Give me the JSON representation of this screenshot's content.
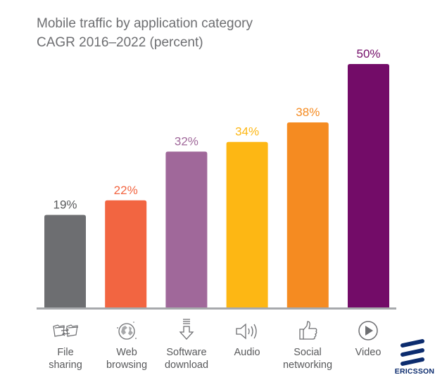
{
  "chart_data": {
    "type": "bar",
    "title": "Mobile traffic by application category",
    "subtitle": "CAGR 2016–2022 (percent)",
    "categories": [
      {
        "line1": "File",
        "line2": "sharing"
      },
      {
        "line1": "Web",
        "line2": "browsing"
      },
      {
        "line1": "Software",
        "line2": "download"
      },
      {
        "line1": "Audio",
        "line2": ""
      },
      {
        "line1": "Social",
        "line2": "networking"
      },
      {
        "line1": "Video",
        "line2": ""
      }
    ],
    "values": [
      19,
      22,
      32,
      34,
      38,
      50
    ],
    "data_labels": [
      "19%",
      "22%",
      "32%",
      "34%",
      "38%",
      "50%"
    ],
    "colors": [
      "#6d6e71",
      "#f26541",
      "#a0689a",
      "#fdb714",
      "#f58b21",
      "#730c68"
    ],
    "label_colors": [
      "#58595b",
      "#f26541",
      "#a0689a",
      "#fdb714",
      "#f58b21",
      "#730c68"
    ],
    "icons": [
      "file-sharing-icon",
      "globe-icon",
      "download-arrow-icon",
      "speaker-icon",
      "thumbs-up-icon",
      "play-icon"
    ],
    "ylim": [
      0,
      50
    ],
    "grid": false,
    "xlabel": "",
    "ylabel": ""
  },
  "branding": {
    "logo_text": "ERICSSON",
    "logo_color": "#0c2c6e"
  }
}
